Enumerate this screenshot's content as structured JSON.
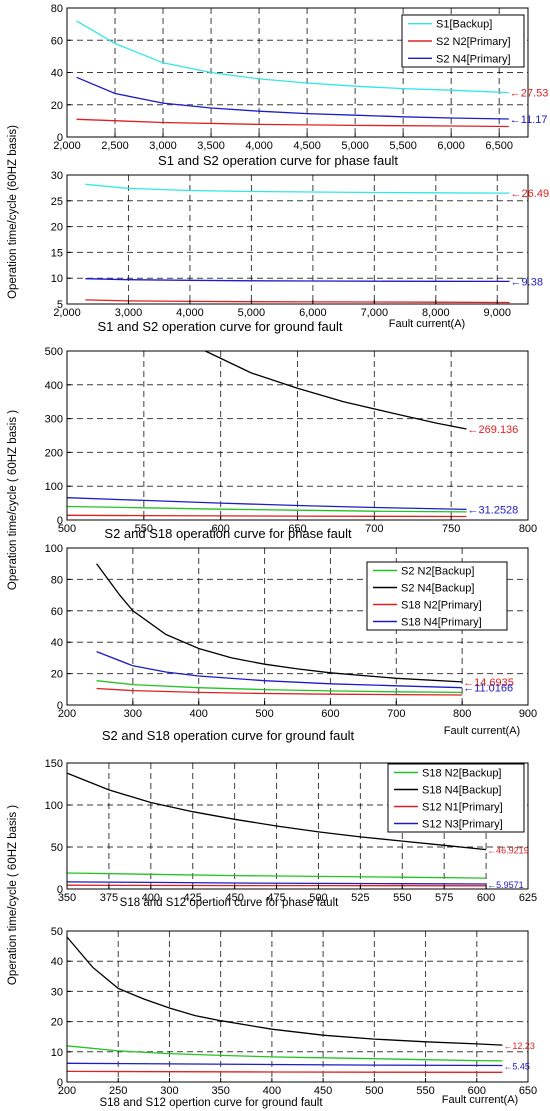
{
  "figure": {
    "y_labels": [
      "Operation time/cycle (60HZ basis)",
      "Operation time/cycle ( 60HZ basis )",
      "Operation time/cycle ( 60HZ basis )"
    ],
    "fault_current_label": "Fault current(A)"
  },
  "chart_data": [
    {
      "type": "line",
      "title": "S1 and S2 operation curve for phase fault",
      "xlabel": "",
      "xlim": [
        2000,
        6800
      ],
      "ylim": [
        0,
        80
      ],
      "xticks": [
        2000,
        2500,
        3000,
        3500,
        4000,
        4500,
        5000,
        5500,
        6000,
        6500
      ],
      "xtick_labels": [
        "2,000",
        "2,500",
        "3,000",
        "3,500",
        "4,000",
        "4,500",
        "5,000",
        "5,500",
        "6,000",
        "6,500"
      ],
      "yticks": [
        0,
        20,
        40,
        60,
        80
      ],
      "ytick_labels": [
        "0",
        "20",
        "40",
        "60",
        "80"
      ],
      "grid": true,
      "legend": "top-right",
      "series": [
        {
          "name": "S1[Backup]",
          "color": "#33e6e6",
          "x": [
            2100,
            2500,
            3000,
            3500,
            4000,
            4500,
            5000,
            5500,
            6000,
            6600
          ],
          "y": [
            72,
            58,
            46,
            40,
            36,
            33.5,
            31.5,
            30,
            29,
            27.53
          ]
        },
        {
          "name": "S2 N2[Primary]",
          "color": "#e02020",
          "x": [
            2100,
            3000,
            4000,
            5000,
            6000,
            6600
          ],
          "y": [
            11,
            9,
            7.8,
            7.2,
            6.8,
            6.5
          ]
        },
        {
          "name": "S2 N4[Primary]",
          "color": "#1c1cc8",
          "x": [
            2100,
            2500,
            3000,
            3500,
            4000,
            4500,
            5000,
            5500,
            6000,
            6600
          ],
          "y": [
            37,
            27,
            21,
            18,
            16,
            14.5,
            13.5,
            12.5,
            11.8,
            11.17
          ]
        }
      ],
      "annotations": [
        {
          "text": "←27.53",
          "color": "#e02020",
          "x": 6600,
          "y": 27.53
        },
        {
          "text": "←11.17",
          "color": "#1c1cc8",
          "x": 6600,
          "y": 11.17
        }
      ]
    },
    {
      "type": "line",
      "title": "S1 and S2 operation curve for ground fault",
      "xlabel": "Fault current(A)",
      "xlim": [
        2000,
        9500
      ],
      "ylim": [
        5,
        30
      ],
      "xticks": [
        2000,
        3000,
        4000,
        5000,
        6000,
        7000,
        8000,
        9000
      ],
      "xtick_labels": [
        "2,000",
        "3,000",
        "4,000",
        "5,000",
        "6,000",
        "7,000",
        "8,000",
        "9,000"
      ],
      "yticks": [
        5,
        10,
        15,
        20,
        25,
        30
      ],
      "ytick_labels": [
        "5",
        "10",
        "15",
        "20",
        "25",
        "30"
      ],
      "grid": true,
      "legend": "none",
      "series": [
        {
          "x": [
            2300,
            3000,
            4000,
            5000,
            6000,
            7000,
            8000,
            9200
          ],
          "y": [
            28.2,
            27.4,
            27.0,
            26.8,
            26.7,
            26.6,
            26.55,
            26.49
          ],
          "color": "#33e6e6"
        },
        {
          "x": [
            2300,
            3000,
            4000,
            5000,
            6000,
            7000,
            8000,
            9200
          ],
          "y": [
            5.8,
            5.6,
            5.5,
            5.45,
            5.4,
            5.38,
            5.35,
            5.3
          ],
          "color": "#e02020"
        },
        {
          "x": [
            2300,
            3000,
            4000,
            5000,
            6000,
            7000,
            8000,
            9200
          ],
          "y": [
            9.9,
            9.7,
            9.6,
            9.5,
            9.45,
            9.42,
            9.4,
            9.38
          ],
          "color": "#1c1cc8"
        }
      ],
      "annotations": [
        {
          "text": "←26.49",
          "color": "#e02020",
          "x": 9200,
          "y": 26.49
        },
        {
          "text": "←9.38",
          "color": "#1c1cc8",
          "x": 9200,
          "y": 9.38
        }
      ]
    },
    {
      "type": "line",
      "title": "S2 and S18 operation curve for phase fault",
      "xlabel": "",
      "xlim": [
        500,
        800
      ],
      "ylim": [
        0,
        500
      ],
      "xticks": [
        500,
        550,
        600,
        650,
        700,
        750,
        800
      ],
      "xtick_labels": [
        "500",
        "550",
        "600",
        "650",
        "700",
        "750",
        "800"
      ],
      "yticks": [
        0,
        100,
        200,
        300,
        400,
        500
      ],
      "ytick_labels": [
        "0",
        "100",
        "200",
        "300",
        "400",
        "500"
      ],
      "grid": true,
      "legend": "none",
      "series": [
        {
          "x": [
            590,
            620,
            650,
            680,
            710,
            740,
            760
          ],
          "y": [
            500,
            435,
            390,
            350,
            318,
            287,
            269.136
          ],
          "color": "#000000"
        },
        {
          "x": [
            500,
            550,
            600,
            650,
            700,
            760
          ],
          "y": [
            66,
            58,
            50,
            43,
            37,
            31.25
          ],
          "color": "#1c1cc8"
        },
        {
          "x": [
            500,
            550,
            600,
            650,
            700,
            760
          ],
          "y": [
            40,
            36,
            32,
            29,
            26,
            24
          ],
          "color": "#22c422"
        },
        {
          "x": [
            500,
            550,
            600,
            650,
            700,
            760
          ],
          "y": [
            14,
            13,
            12,
            11.5,
            11,
            10.5
          ],
          "color": "#e02020"
        }
      ],
      "annotations": [
        {
          "text": "←269.136",
          "color": "#e02020",
          "x": 760,
          "y": 269.136
        },
        {
          "text": "←31.2528",
          "color": "#1c1cc8",
          "x": 760,
          "y": 31.25
        }
      ]
    },
    {
      "type": "line",
      "title": "S2 and S18 operation curve for ground fault",
      "xlabel": "Fault current(A)",
      "xlim": [
        200,
        900
      ],
      "ylim": [
        0,
        100
      ],
      "xticks": [
        200,
        300,
        400,
        500,
        600,
        700,
        800,
        900
      ],
      "xtick_labels": [
        "200",
        "300",
        "400",
        "500",
        "600",
        "700",
        "800",
        "900"
      ],
      "yticks": [
        0,
        20,
        40,
        60,
        80,
        100
      ],
      "ytick_labels": [
        "0",
        "20",
        "40",
        "60",
        "80",
        "100"
      ],
      "grid": true,
      "legend": "top-right",
      "series": [
        {
          "name": "S2 N2[Backup]",
          "color": "#22c422",
          "x": [
            245,
            300,
            400,
            500,
            600,
            700,
            800
          ],
          "y": [
            15.5,
            13,
            11,
            9.8,
            9,
            8.4,
            8
          ]
        },
        {
          "name": "S2 N4[Backup]",
          "color": "#000000",
          "x": [
            245,
            280,
            300,
            350,
            400,
            450,
            500,
            550,
            600,
            700,
            800
          ],
          "y": [
            90,
            70,
            60,
            45,
            36,
            30,
            26,
            23,
            20.5,
            17,
            14.69
          ]
        },
        {
          "name": "S18 N2[Primary]",
          "color": "#e02020",
          "x": [
            245,
            300,
            400,
            500,
            600,
            700,
            800
          ],
          "y": [
            10.5,
            9.2,
            8,
            7.3,
            6.9,
            6.6,
            6.4
          ]
        },
        {
          "name": "S18 N4[Primary]",
          "color": "#1c1cc8",
          "x": [
            245,
            300,
            350,
            400,
            500,
            600,
            700,
            800
          ],
          "y": [
            34,
            25,
            21,
            18.5,
            15.5,
            13.5,
            12.2,
            11.02
          ]
        }
      ],
      "annotations": [
        {
          "text": "←14.6935",
          "color": "#e02020",
          "x": 800,
          "y": 14.69
        },
        {
          "text": "←11.0166",
          "color": "#1c1cc8",
          "x": 800,
          "y": 11.02
        }
      ]
    },
    {
      "type": "line",
      "title": "S18 and S12 opertion curve for phase fault",
      "xlabel": "",
      "xlim": [
        350,
        625
      ],
      "ylim": [
        0,
        150
      ],
      "xticks": [
        350,
        375,
        400,
        425,
        450,
        475,
        500,
        525,
        550,
        575,
        600,
        625
      ],
      "xtick_labels": [
        "350",
        "375",
        "400",
        "425",
        "450",
        "475",
        "500",
        "525",
        "550",
        "575",
        "600",
        "625"
      ],
      "yticks": [
        0,
        50,
        100,
        150
      ],
      "ytick_labels": [
        "0",
        "50",
        "100",
        "150"
      ],
      "grid": true,
      "legend": "top-right",
      "series": [
        {
          "name": "S18 N2[Backup]",
          "color": "#22c422",
          "x": [
            350,
            400,
            450,
            500,
            550,
            600
          ],
          "y": [
            19,
            17.5,
            16,
            15,
            14,
            13
          ]
        },
        {
          "name": "S18 N4[Backup]",
          "color": "#000000",
          "x": [
            350,
            375,
            400,
            425,
            450,
            475,
            500,
            525,
            550,
            575,
            600
          ],
          "y": [
            138,
            118,
            103,
            92,
            83,
            75,
            68,
            62,
            57,
            52,
            46.92
          ]
        },
        {
          "name": "S12 N1[Primary]",
          "color": "#e02020",
          "x": [
            350,
            400,
            450,
            500,
            550,
            600
          ],
          "y": [
            4.5,
            4.3,
            4.1,
            4,
            3.9,
            3.8
          ]
        },
        {
          "name": "S12 N3[Primary]",
          "color": "#1c1cc8",
          "x": [
            350,
            400,
            450,
            500,
            550,
            600
          ],
          "y": [
            8.5,
            7.8,
            7.2,
            6.7,
            6.3,
            5.96
          ]
        }
      ],
      "annotations": [
        {
          "text": "←46.9219",
          "color": "#e02020",
          "x": 600,
          "y": 46.92,
          "small": true
        },
        {
          "text": "←5.9571",
          "color": "#1c1cc8",
          "x": 600,
          "y": 5.96,
          "small": true
        }
      ]
    },
    {
      "type": "line",
      "title": "S18 and S12 opertion curve for ground fault",
      "xlabel": "Fault current(A)",
      "xlim": [
        200,
        650
      ],
      "ylim": [
        0,
        50
      ],
      "xticks": [
        200,
        250,
        300,
        350,
        400,
        450,
        500,
        550,
        600,
        650
      ],
      "xtick_labels": [
        "200",
        "250",
        "300",
        "350",
        "400",
        "450",
        "500",
        "550",
        "600",
        "650"
      ],
      "yticks": [
        0,
        10,
        20,
        30,
        40,
        50
      ],
      "ytick_labels": [
        "0",
        "10",
        "20",
        "30",
        "40",
        "50"
      ],
      "grid": true,
      "legend": "none",
      "series": [
        {
          "x": [
            200,
            225,
            250,
            275,
            300,
            325,
            350,
            400,
            450,
            500,
            550,
            600,
            625
          ],
          "y": [
            48,
            38,
            31,
            27.5,
            24.5,
            22,
            20.3,
            17.5,
            15.5,
            14.2,
            13.3,
            12.6,
            12.23
          ],
          "color": "#000000"
        },
        {
          "x": [
            200,
            250,
            300,
            350,
            400,
            450,
            500,
            550,
            600,
            625
          ],
          "y": [
            12,
            10.3,
            9.4,
            8.8,
            8.3,
            8,
            7.7,
            7.4,
            7.1,
            7
          ],
          "color": "#22c422"
        },
        {
          "x": [
            200,
            300,
            400,
            500,
            625
          ],
          "y": [
            6.2,
            6,
            5.8,
            5.6,
            5.45
          ],
          "color": "#1c1cc8"
        },
        {
          "x": [
            200,
            300,
            400,
            500,
            625
          ],
          "y": [
            3.5,
            3.4,
            3.3,
            3.25,
            3.2
          ],
          "color": "#e02020"
        }
      ],
      "annotations": [
        {
          "text": "←12.23",
          "color": "#e02020",
          "x": 625,
          "y": 12.23,
          "small": true
        },
        {
          "text": "←5.45",
          "color": "#1c1cc8",
          "x": 625,
          "y": 5.45,
          "small": true
        }
      ]
    }
  ]
}
